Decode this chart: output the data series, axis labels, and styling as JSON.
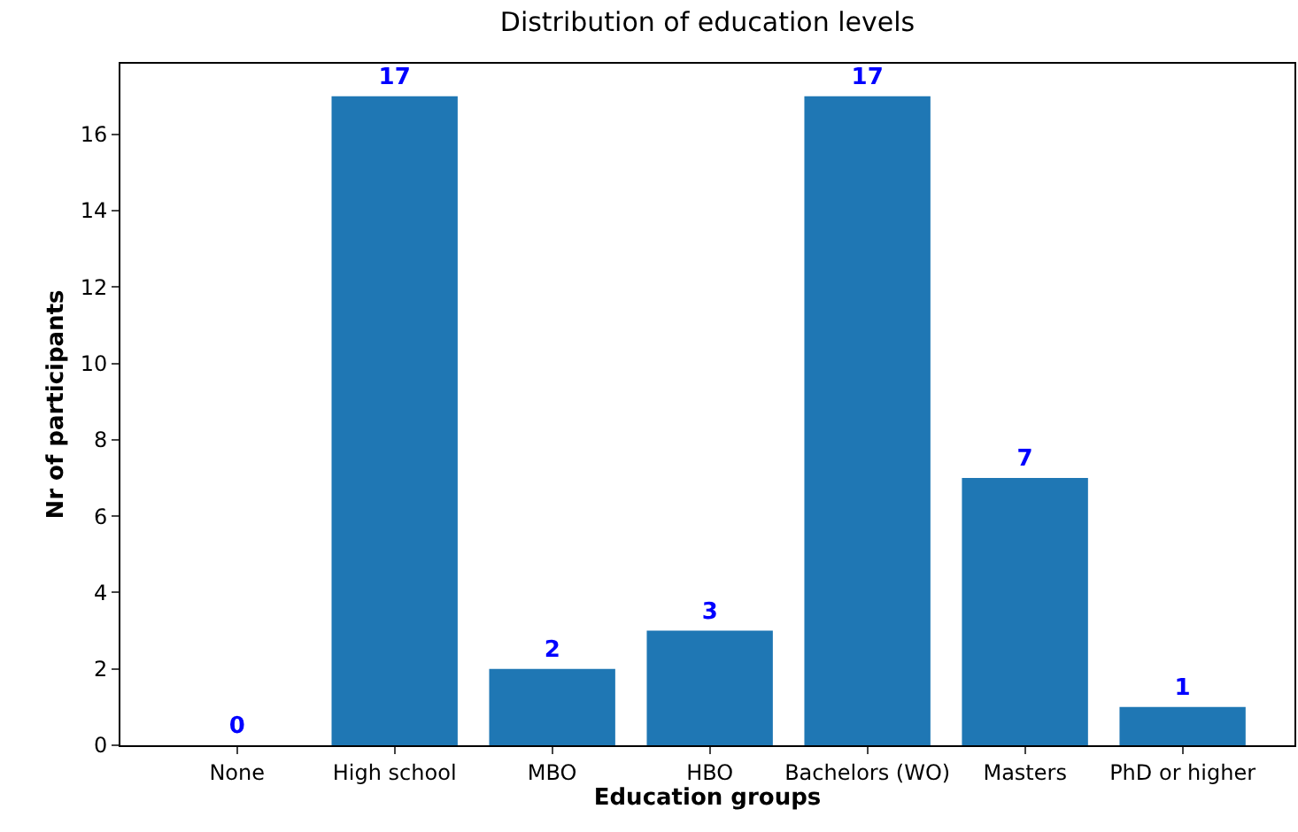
{
  "chart_data": {
    "type": "bar",
    "title": "Distribution of education levels",
    "xlabel": "Education groups",
    "ylabel": "Nr of participants",
    "categories": [
      "None",
      "High school",
      "MBO",
      "HBO",
      "Bachelors (WO)",
      "Masters",
      "PhD or higher"
    ],
    "values": [
      0,
      17,
      2,
      3,
      17,
      7,
      1
    ],
    "color": "#1f77b4",
    "ylim": [
      0,
      17.85
    ],
    "yticks": [
      0,
      2,
      4,
      6,
      8,
      10,
      12,
      14,
      16
    ],
    "data_labels": true
  }
}
